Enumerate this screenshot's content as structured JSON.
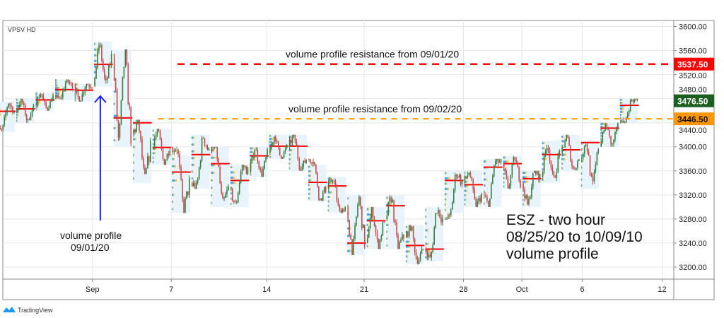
{
  "indicator_label": "VPSV HD",
  "brand": "TradingView",
  "colors": {
    "up": "#3a7d3f",
    "down": "#c0504d",
    "poc": "#ff0000",
    "profile_bg": "#e8f3fb",
    "profile_up": "#42a5f5",
    "profile_down": "#fbc02d",
    "resistance1": "#ff0000",
    "resistance2": "#ff9800",
    "last_price": "#1b5e20",
    "arrow": "#1a1aff"
  },
  "chart_data": {
    "type": "candlestick",
    "title": "ESZ - two hour 08/25/20 to 10/09/10 volume profile",
    "ylim": [
      3180,
      3610
    ],
    "xlim": [
      -0.15,
      34.3
    ],
    "y_ticks": [
      "3200.00",
      "3240.00",
      "3280.00",
      "3320.00",
      "3360.00",
      "3400.00",
      "3440.00",
      "3480.00",
      "3520.00",
      "3560.00",
      "3600.00"
    ],
    "y_tick_values": [
      3200,
      3240,
      3280,
      3320,
      3360,
      3400,
      3440,
      3480,
      3520,
      3560,
      3600
    ],
    "x_ticks": [
      {
        "label": "Sep",
        "at": 4.45
      },
      {
        "label": "7",
        "at": 8.5
      },
      {
        "label": "14",
        "at": 13.4
      },
      {
        "label": "21",
        "at": 18.4
      },
      {
        "label": "28",
        "at": 23.5
      },
      {
        "label": "Oct",
        "at": 26.5
      },
      {
        "label": "6",
        "at": 29.6
      },
      {
        "label": "12",
        "at": 33.7
      }
    ],
    "sessions": [
      {
        "o": 3430,
        "h": 3475,
        "l": 3425,
        "c": 3458,
        "poc": 3459
      },
      {
        "o": 3458,
        "h": 3480,
        "l": 3440,
        "c": 3470,
        "poc": 3463
      },
      {
        "o": 3470,
        "h": 3490,
        "l": 3460,
        "c": 3485,
        "poc": 3478
      },
      {
        "o": 3485,
        "h": 3512,
        "l": 3478,
        "c": 3500,
        "poc": 3495
      },
      {
        "o": 3500,
        "h": 3505,
        "l": 3475,
        "c": 3500,
        "poc": 3494
      },
      {
        "o": 3500,
        "h": 3575,
        "l": 3500,
        "c": 3550,
        "poc": 3537
      },
      {
        "o": 3550,
        "h": 3562,
        "l": 3400,
        "c": 3420,
        "poc": 3448
      },
      {
        "o": 3420,
        "h": 3445,
        "l": 3340,
        "c": 3400,
        "poc": 3440
      },
      {
        "o": 3400,
        "h": 3430,
        "l": 3370,
        "c": 3400,
        "poc": 3399
      },
      {
        "o": 3400,
        "h": 3385,
        "l": 3290,
        "c": 3340,
        "poc": 3358
      },
      {
        "o": 3340,
        "h": 3420,
        "l": 3330,
        "c": 3390,
        "poc": 3387
      },
      {
        "o": 3390,
        "h": 3400,
        "l": 3300,
        "c": 3330,
        "poc": 3372
      },
      {
        "o": 3330,
        "h": 3370,
        "l": 3300,
        "c": 3360,
        "poc": 3344
      },
      {
        "o": 3360,
        "h": 3400,
        "l": 3350,
        "c": 3390,
        "poc": 3385
      },
      {
        "o": 3390,
        "h": 3420,
        "l": 3380,
        "c": 3400,
        "poc": 3401
      },
      {
        "o": 3400,
        "h": 3420,
        "l": 3360,
        "c": 3380,
        "poc": 3401
      },
      {
        "o": 3380,
        "h": 3370,
        "l": 3310,
        "c": 3330,
        "poc": 3341
      },
      {
        "o": 3330,
        "h": 3350,
        "l": 3290,
        "c": 3300,
        "poc": 3335
      },
      {
        "o": 3300,
        "h": 3320,
        "l": 3220,
        "c": 3240,
        "poc": 3240
      },
      {
        "o": 3240,
        "h": 3300,
        "l": 3230,
        "c": 3280,
        "poc": 3277
      },
      {
        "o": 3280,
        "h": 3320,
        "l": 3230,
        "c": 3250,
        "poc": 3302
      },
      {
        "o": 3250,
        "h": 3270,
        "l": 3205,
        "c": 3230,
        "poc": 3236
      },
      {
        "o": 3230,
        "h": 3300,
        "l": 3210,
        "c": 3280,
        "poc": 3230
      },
      {
        "o": 3280,
        "h": 3360,
        "l": 3290,
        "c": 3340,
        "poc": 3344
      },
      {
        "o": 3340,
        "h": 3360,
        "l": 3300,
        "c": 3320,
        "poc": 3337
      },
      {
        "o": 3320,
        "h": 3380,
        "l": 3300,
        "c": 3370,
        "poc": 3366
      },
      {
        "o": 3370,
        "h": 3385,
        "l": 3330,
        "c": 3340,
        "poc": 3372
      },
      {
        "o": 3340,
        "h": 3360,
        "l": 3300,
        "c": 3350,
        "poc": 3347
      },
      {
        "o": 3350,
        "h": 3410,
        "l": 3340,
        "c": 3390,
        "poc": 3387
      },
      {
        "o": 3390,
        "h": 3420,
        "l": 3360,
        "c": 3380,
        "poc": 3395
      },
      {
        "o": 3380,
        "h": 3410,
        "l": 3330,
        "c": 3400,
        "poc": 3407
      },
      {
        "o": 3400,
        "h": 3440,
        "l": 3400,
        "c": 3440,
        "poc": 3431
      },
      {
        "o": 3440,
        "h": 3480,
        "l": 3440,
        "c": 3476.5,
        "poc": 3469
      }
    ],
    "levels": [
      {
        "label": "volume profile resistance from 09/01/20",
        "value": 3537.5,
        "price_label": "3537.50",
        "from_session": 9
      },
      {
        "label": "volume profile resistance from 09/02/20",
        "value": 3446.5,
        "price_label": "3446.50",
        "from_session": 8
      }
    ],
    "last_price": {
      "value": 3476.5,
      "label": "3476.50"
    },
    "annotations": {
      "arrow_note": [
        "volume profile",
        "09/01/20"
      ],
      "arrow_session": 5,
      "title_lines": [
        "ESZ  - two hour",
        "08/25/20 to 10/09/10",
        "volume profile"
      ]
    }
  }
}
